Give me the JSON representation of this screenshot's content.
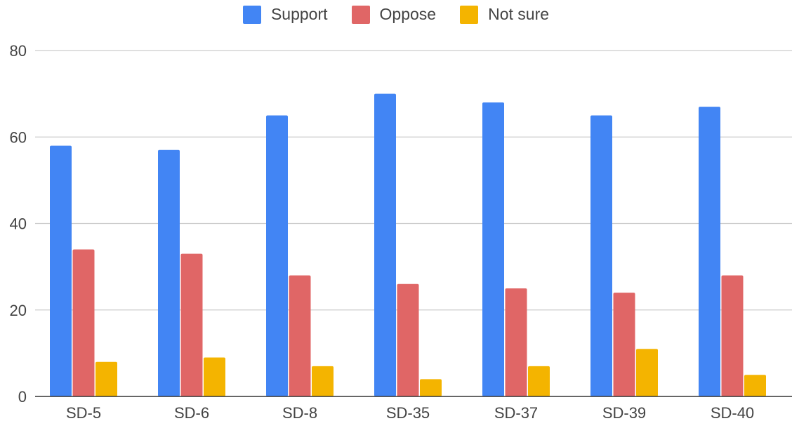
{
  "chart_data": {
    "type": "bar",
    "categories": [
      "SD-5",
      "SD-6",
      "SD-8",
      "SD-35",
      "SD-37",
      "SD-39",
      "SD-40"
    ],
    "series": [
      {
        "name": "Support",
        "color": "#4285F4",
        "values": [
          58,
          57,
          65,
          70,
          68,
          65,
          67
        ]
      },
      {
        "name": "Oppose",
        "color": "#E06666",
        "values": [
          34,
          33,
          28,
          26,
          25,
          24,
          28
        ]
      },
      {
        "name": "Not sure",
        "color": "#F4B400",
        "values": [
          8,
          9,
          7,
          4,
          7,
          11,
          5
        ]
      }
    ],
    "ylim": [
      0,
      80
    ],
    "yticks": [
      0,
      20,
      40,
      60,
      80
    ],
    "grid": true,
    "legend_position": "top-center",
    "title": "",
    "xlabel": "",
    "ylabel": ""
  }
}
